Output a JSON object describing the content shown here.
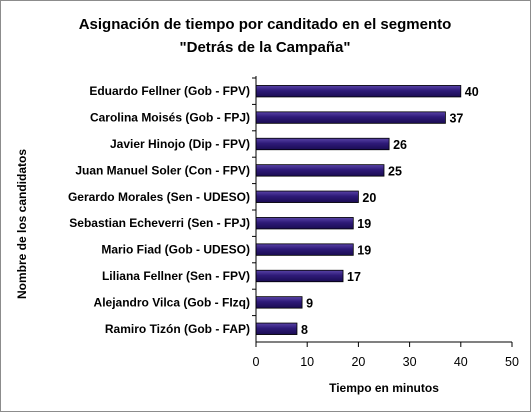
{
  "chart_data": {
    "type": "bar",
    "orientation": "horizontal",
    "title": "Asignación de tiempo por canditado en el segmento",
    "subtitle": "\"Detrás de la Campaña\"",
    "xlabel": "Tiempo en minutos",
    "ylabel": "Nombre de los candidatos",
    "categories": [
      "Eduardo Fellner (Gob - FPV)",
      "Carolina Moisés (Gob - FPJ)",
      "Javier Hinojo (Dip - FPV)",
      "Juan Manuel Soler (Con - FPV)",
      "Gerardo Morales (Sen - UDESO)",
      "Sebastian Echeverri (Sen - FPJ)",
      "Mario Fiad (Gob - UDESO)",
      "Liliana Fellner (Sen - FPV)",
      "Alejandro Vilca (Gob - FIzq)",
      "Ramiro Tizón (Gob - FAP)"
    ],
    "values": [
      40,
      37,
      26,
      25,
      20,
      19,
      19,
      17,
      9,
      8
    ],
    "xlim": [
      0,
      50
    ],
    "xticks": [
      0,
      10,
      20,
      30,
      40,
      50
    ],
    "bar_color": "#2e1a78",
    "grid": false,
    "data_labels": true
  }
}
